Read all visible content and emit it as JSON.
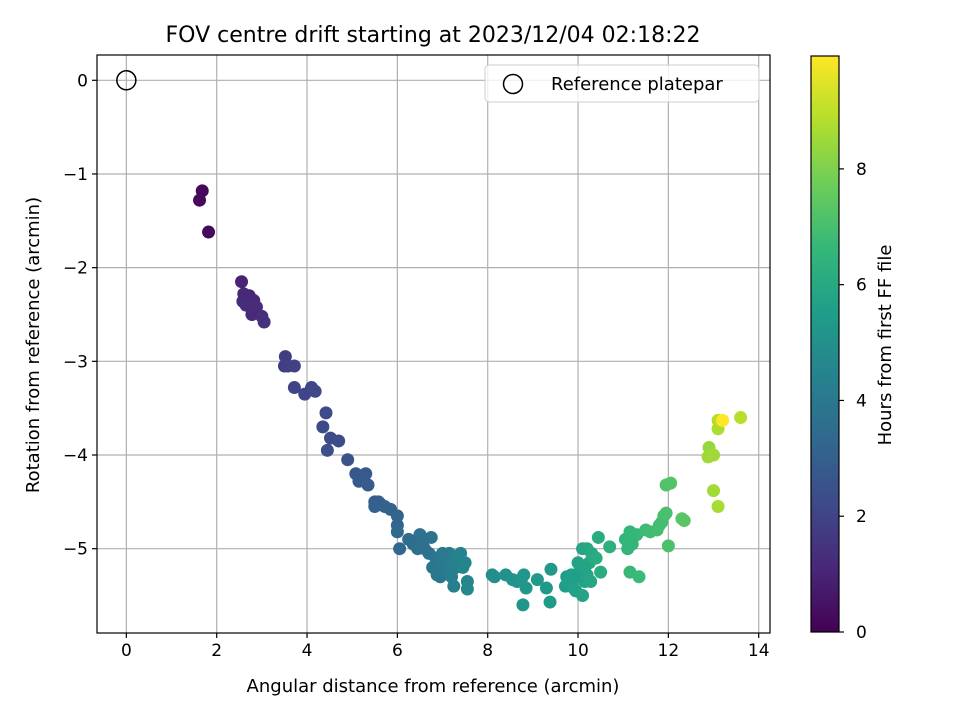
{
  "chart_data": {
    "type": "scatter",
    "title": "FOV centre drift starting at 2023/12/04 02:18:22",
    "xlabel": "Angular distance from reference (arcmin)",
    "ylabel": "Rotation from reference (arcmin)",
    "xlim": [
      -0.65,
      14.25
    ],
    "ylim": [
      -5.9,
      0.27
    ],
    "xticks": [
      0,
      2,
      4,
      6,
      8,
      10,
      12,
      14
    ],
    "yticks": [
      0,
      -1,
      -2,
      -3,
      -4,
      -5
    ],
    "xtick_labels": [
      "0",
      "2",
      "4",
      "6",
      "8",
      "10",
      "12",
      "14"
    ],
    "ytick_labels": [
      "0",
      "−1",
      "−2",
      "−3",
      "−4",
      "−5"
    ],
    "grid": true,
    "legend": {
      "placement": "top-right",
      "entries": [
        {
          "label": "Reference platepar",
          "marker": "open-circle"
        }
      ]
    },
    "colorbar": {
      "label": "Hours from first FF file",
      "colormap": "viridis",
      "range": [
        0,
        9.95
      ],
      "ticks": [
        0,
        2,
        4,
        6,
        8
      ],
      "tick_labels": [
        "0",
        "2",
        "4",
        "6",
        "8"
      ]
    },
    "reference_point": {
      "x": 0,
      "y": 0
    },
    "points": [
      [
        1.68,
        -1.18,
        0.2
      ],
      [
        1.62,
        -1.28,
        0.25
      ],
      [
        1.82,
        -1.62,
        0.3
      ],
      [
        2.55,
        -2.15,
        1.0
      ],
      [
        2.72,
        -2.3,
        1.05
      ],
      [
        2.6,
        -2.28,
        1.1
      ],
      [
        2.82,
        -2.35,
        1.15
      ],
      [
        2.58,
        -2.36,
        1.2
      ],
      [
        2.78,
        -2.5,
        1.25
      ],
      [
        2.88,
        -2.42,
        1.3
      ],
      [
        3.0,
        -2.52,
        1.35
      ],
      [
        3.05,
        -2.58,
        1.4
      ],
      [
        2.65,
        -2.4,
        1.3
      ],
      [
        2.8,
        -2.45,
        1.2
      ],
      [
        3.52,
        -2.95,
        1.8
      ],
      [
        3.5,
        -3.05,
        1.85
      ],
      [
        3.58,
        -3.05,
        1.9
      ],
      [
        3.72,
        -3.05,
        1.95
      ],
      [
        3.72,
        -3.28,
        2.0
      ],
      [
        3.95,
        -3.35,
        2.05
      ],
      [
        4.1,
        -3.28,
        2.1
      ],
      [
        4.18,
        -3.32,
        2.15
      ],
      [
        4.42,
        -3.55,
        2.2
      ],
      [
        4.35,
        -3.7,
        2.25
      ],
      [
        4.52,
        -3.82,
        2.3
      ],
      [
        4.7,
        -3.85,
        2.35
      ],
      [
        4.45,
        -3.95,
        2.4
      ],
      [
        4.9,
        -4.05,
        2.5
      ],
      [
        5.08,
        -4.2,
        2.7
      ],
      [
        5.3,
        -4.2,
        2.75
      ],
      [
        5.15,
        -4.28,
        2.8
      ],
      [
        5.35,
        -4.32,
        2.85
      ],
      [
        5.5,
        -4.5,
        2.9
      ],
      [
        5.58,
        -4.5,
        2.95
      ],
      [
        5.62,
        -4.52,
        3.0
      ],
      [
        5.5,
        -4.55,
        3.05
      ],
      [
        5.72,
        -4.55,
        3.1
      ],
      [
        5.85,
        -4.58,
        3.15
      ],
      [
        6.0,
        -4.65,
        3.2
      ],
      [
        6.0,
        -4.75,
        3.25
      ],
      [
        6.0,
        -4.82,
        3.3
      ],
      [
        6.05,
        -5.0,
        3.35
      ],
      [
        6.25,
        -4.9,
        3.5
      ],
      [
        6.35,
        -4.95,
        3.55
      ],
      [
        6.45,
        -5.0,
        3.6
      ],
      [
        6.5,
        -4.85,
        3.65
      ],
      [
        6.6,
        -4.9,
        3.7
      ],
      [
        6.7,
        -5.05,
        3.75
      ],
      [
        6.75,
        -4.88,
        3.8
      ],
      [
        6.78,
        -5.2,
        3.85
      ],
      [
        6.85,
        -5.1,
        3.9
      ],
      [
        6.9,
        -5.2,
        3.95
      ],
      [
        6.95,
        -5.3,
        4.0
      ],
      [
        7.0,
        -5.1,
        4.05
      ],
      [
        7.05,
        -5.2,
        4.1
      ],
      [
        7.1,
        -5.25,
        4.15
      ],
      [
        7.15,
        -5.05,
        4.2
      ],
      [
        7.2,
        -5.15,
        4.25
      ],
      [
        7.25,
        -5.4,
        4.3
      ],
      [
        7.3,
        -5.2,
        4.35
      ],
      [
        7.35,
        -5.1,
        4.4
      ],
      [
        7.4,
        -5.05,
        4.45
      ],
      [
        7.45,
        -5.2,
        4.5
      ],
      [
        7.5,
        -5.15,
        4.55
      ],
      [
        7.55,
        -5.35,
        4.55
      ],
      [
        7.55,
        -5.43,
        4.6
      ],
      [
        7.0,
        -5.05,
        4.1
      ],
      [
        6.88,
        -5.28,
        4.0
      ],
      [
        7.2,
        -5.3,
        4.2
      ],
      [
        6.6,
        -5.0,
        3.7
      ],
      [
        8.1,
        -5.28,
        4.9
      ],
      [
        8.15,
        -5.3,
        4.95
      ],
      [
        8.4,
        -5.28,
        5.0
      ],
      [
        8.55,
        -5.33,
        5.05
      ],
      [
        8.65,
        -5.35,
        5.1
      ],
      [
        8.75,
        -5.32,
        5.15
      ],
      [
        8.8,
        -5.28,
        5.2
      ],
      [
        8.85,
        -5.42,
        5.25
      ],
      [
        8.78,
        -5.6,
        5.25
      ],
      [
        9.1,
        -5.33,
        5.3
      ],
      [
        9.3,
        -5.42,
        5.35
      ],
      [
        9.4,
        -5.22,
        5.35
      ],
      [
        9.38,
        -5.57,
        5.4
      ],
      [
        9.75,
        -5.3,
        5.5
      ],
      [
        9.72,
        -5.4,
        5.55
      ],
      [
        9.8,
        -5.35,
        5.6
      ],
      [
        9.85,
        -5.28,
        5.62
      ],
      [
        9.9,
        -5.42,
        5.65
      ],
      [
        9.95,
        -5.45,
        5.7
      ],
      [
        10.0,
        -5.15,
        5.72
      ],
      [
        10.05,
        -5.22,
        5.75
      ],
      [
        10.1,
        -5.5,
        5.78
      ],
      [
        10.15,
        -5.35,
        5.8
      ],
      [
        10.2,
        -5.28,
        5.82
      ],
      [
        10.1,
        -5.0,
        5.85
      ],
      [
        10.2,
        -5.0,
        5.9
      ],
      [
        10.25,
        -5.15,
        5.95
      ],
      [
        10.3,
        -5.05,
        6.0
      ],
      [
        10.35,
        -5.1,
        6.05
      ],
      [
        10.4,
        -5.1,
        6.1
      ],
      [
        10.45,
        -4.88,
        6.15
      ],
      [
        10.5,
        -5.25,
        6.2
      ],
      [
        10.7,
        -4.98,
        6.3
      ],
      [
        10.0,
        -5.3,
        5.7
      ],
      [
        10.15,
        -5.2,
        5.8
      ],
      [
        10.28,
        -5.35,
        5.9
      ],
      [
        9.9,
        -5.3,
        5.6
      ],
      [
        11.05,
        -4.9,
        6.5
      ],
      [
        11.1,
        -5.0,
        6.55
      ],
      [
        11.15,
        -4.82,
        6.6
      ],
      [
        11.3,
        -4.85,
        6.65
      ],
      [
        11.15,
        -5.25,
        6.7
      ],
      [
        11.35,
        -5.3,
        6.75
      ],
      [
        11.5,
        -4.8,
        6.8
      ],
      [
        11.6,
        -4.82,
        6.85
      ],
      [
        11.75,
        -4.8,
        6.9
      ],
      [
        11.85,
        -4.72,
        6.95
      ],
      [
        11.9,
        -4.65,
        7.0
      ],
      [
        11.95,
        -4.62,
        7.05
      ],
      [
        12.0,
        -4.97,
        7.1
      ],
      [
        11.95,
        -4.32,
        7.2
      ],
      [
        12.05,
        -4.3,
        7.25
      ],
      [
        12.3,
        -4.68,
        7.3
      ],
      [
        12.35,
        -4.7,
        7.35
      ],
      [
        11.2,
        -4.95,
        6.55
      ],
      [
        11.8,
        -4.75,
        6.95
      ],
      [
        12.9,
        -3.92,
        8.4
      ],
      [
        12.88,
        -4.02,
        8.5
      ],
      [
        13.0,
        -4.0,
        8.55
      ],
      [
        13.0,
        -4.38,
        8.6
      ],
      [
        13.1,
        -4.55,
        8.65
      ],
      [
        13.1,
        -3.72,
        8.75
      ],
      [
        13.1,
        -3.63,
        8.85
      ],
      [
        13.6,
        -3.6,
        8.9
      ],
      [
        13.2,
        -3.63,
        9.95
      ]
    ]
  }
}
